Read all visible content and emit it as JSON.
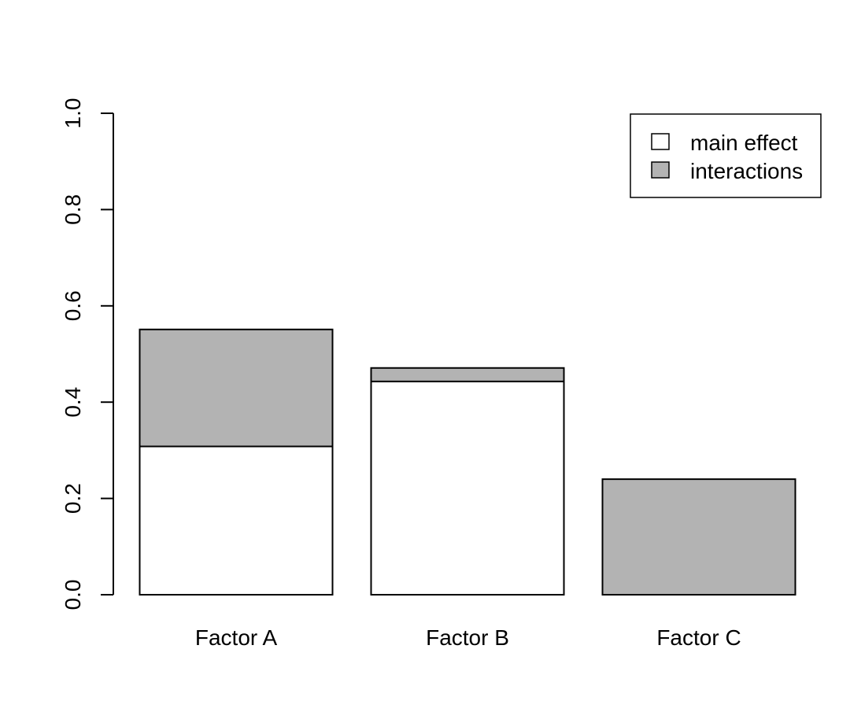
{
  "chart_data": {
    "type": "bar",
    "stacked": true,
    "categories": [
      "Factor A",
      "Factor B",
      "Factor C"
    ],
    "series": [
      {
        "name": "main effect",
        "values": [
          0.308,
          0.443,
          0.0
        ],
        "color": "#ffffff"
      },
      {
        "name": "interactions",
        "values": [
          0.243,
          0.028,
          0.24
        ],
        "color": "#b3b3b3"
      }
    ],
    "ylim": [
      0,
      1
    ],
    "yticks": [
      "0.0",
      "0.2",
      "0.4",
      "0.6",
      "0.8",
      "1.0"
    ],
    "grid": false,
    "legend": {
      "position": "top-right",
      "entries": [
        "main effect",
        "interactions"
      ]
    }
  }
}
